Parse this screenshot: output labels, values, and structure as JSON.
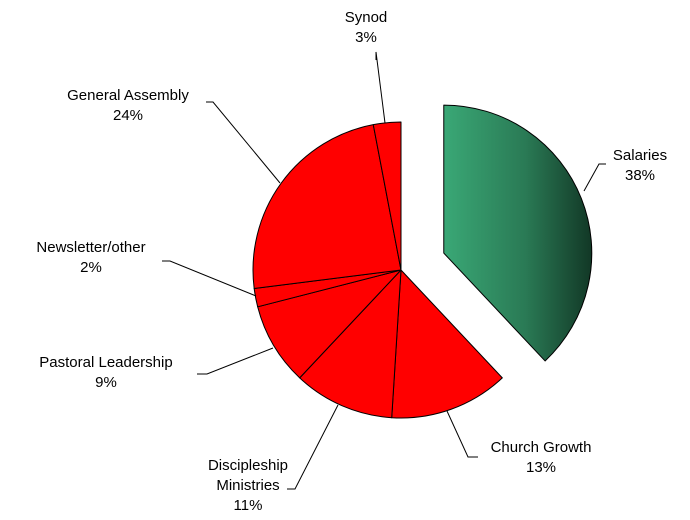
{
  "chart_data": {
    "type": "pie",
    "title": "",
    "slices": [
      {
        "name": "Salaries",
        "value": 38,
        "label_lines": [
          "Salaries",
          "38%"
        ],
        "exploded": true,
        "color": "#2e7d5a"
      },
      {
        "name": "Church Growth",
        "value": 13,
        "label_lines": [
          "Church Growth",
          "13%"
        ],
        "exploded": false,
        "color": "#ff0000"
      },
      {
        "name": "Discipleship Ministries",
        "value": 11,
        "label_lines": [
          "Discipleship",
          "Ministries",
          "11%"
        ],
        "exploded": false,
        "color": "#ff0000"
      },
      {
        "name": "Pastoral Leadership",
        "value": 9,
        "label_lines": [
          "Pastoral Leadership",
          "9%"
        ],
        "exploded": false,
        "color": "#ff0000"
      },
      {
        "name": "Newsletter/other",
        "value": 2,
        "label_lines": [
          "Newsletter/other",
          "2%"
        ],
        "exploded": false,
        "color": "#ff0000"
      },
      {
        "name": "General Assembly",
        "value": 24,
        "label_lines": [
          "General Assembly",
          "24%"
        ],
        "exploded": false,
        "color": "#ff0000"
      },
      {
        "name": "Synod",
        "value": 3,
        "label_lines": [
          "Synod",
          "3%"
        ],
        "exploded": false,
        "color": "#ff0000"
      }
    ],
    "legend": "none"
  }
}
